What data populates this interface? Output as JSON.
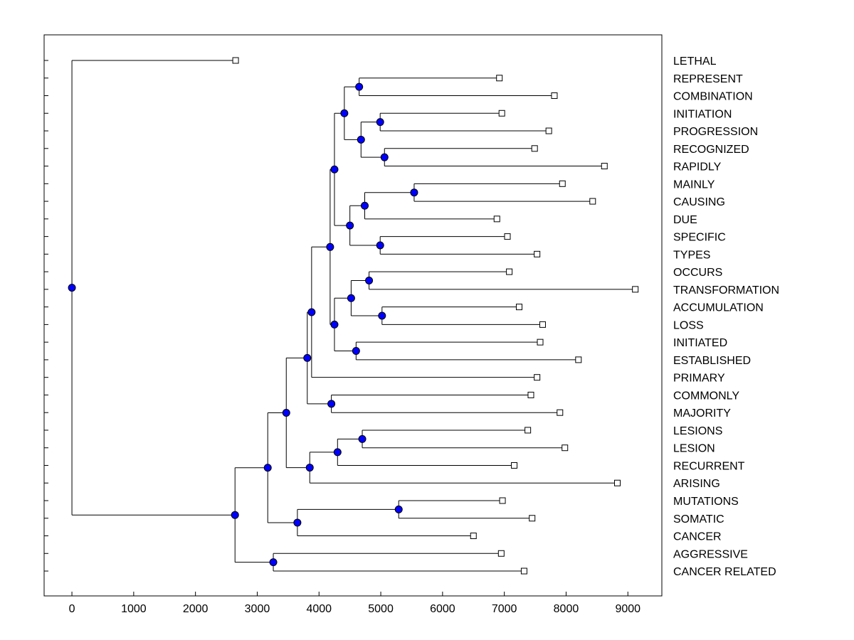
{
  "chart_data": {
    "type": "dendrogram",
    "orientation": "horizontal",
    "title": "",
    "xlabel": "",
    "ylabel": "",
    "xlim": [
      -450,
      9550
    ],
    "x_ticks": [
      0,
      1000,
      2000,
      3000,
      4000,
      5000,
      6000,
      7000,
      8000,
      9000
    ],
    "x_tick_labels": [
      "0",
      "1000",
      "2000",
      "3000",
      "4000",
      "5000",
      "6000",
      "7000",
      "8000",
      "9000"
    ],
    "grid": false,
    "leaf_marker_color": "#ffffff",
    "node_marker_color": "#0000ff",
    "leaves": [
      {
        "label": "LETHAL",
        "x": 2650
      },
      {
        "label": "REPRESENT",
        "x": 6920
      },
      {
        "label": "COMBINATION",
        "x": 7810
      },
      {
        "label": "INITIATION",
        "x": 6960
      },
      {
        "label": "PROGRESSION",
        "x": 7720
      },
      {
        "label": "RECOGNIZED",
        "x": 7490
      },
      {
        "label": "RAPIDLY",
        "x": 8620
      },
      {
        "label": "MAINLY",
        "x": 7940
      },
      {
        "label": "CAUSING",
        "x": 8430
      },
      {
        "label": "DUE",
        "x": 6880
      },
      {
        "label": "SPECIFIC",
        "x": 7050
      },
      {
        "label": "TYPES",
        "x": 7530
      },
      {
        "label": "OCCURS",
        "x": 7080
      },
      {
        "label": "TRANSFORMATION",
        "x": 9120
      },
      {
        "label": "ACCUMULATION",
        "x": 7240
      },
      {
        "label": "LOSS",
        "x": 7620
      },
      {
        "label": "INITIATED",
        "x": 7580
      },
      {
        "label": "ESTABLISHED",
        "x": 8200
      },
      {
        "label": "PRIMARY",
        "x": 7530
      },
      {
        "label": "COMMONLY",
        "x": 7430
      },
      {
        "label": "MAJORITY",
        "x": 7900
      },
      {
        "label": "LESIONS",
        "x": 7380
      },
      {
        "label": "LESION",
        "x": 7980
      },
      {
        "label": "RECURRENT",
        "x": 7160
      },
      {
        "label": "ARISING",
        "x": 8830
      },
      {
        "label": "MUTATIONS",
        "x": 6970
      },
      {
        "label": "SOMATIC",
        "x": 7450
      },
      {
        "label": "CANCER",
        "x": 6500
      },
      {
        "label": "AGGRESSIVE",
        "x": 6950
      },
      {
        "label": "CANCER RELATED",
        "x": 7320
      }
    ],
    "merges": [
      {
        "id": "m1",
        "x": 4650,
        "children": [
          "L1",
          "L2"
        ]
      },
      {
        "id": "m2",
        "x": 4990,
        "children": [
          "L3",
          "L4"
        ]
      },
      {
        "id": "m3",
        "x": 5060,
        "children": [
          "L5",
          "L6"
        ]
      },
      {
        "id": "m4",
        "x": 4680,
        "children": [
          "m2",
          "m3"
        ]
      },
      {
        "id": "m5",
        "x": 4410,
        "children": [
          "m1",
          "m4"
        ]
      },
      {
        "id": "m6",
        "x": 5540,
        "children": [
          "L7",
          "L8"
        ]
      },
      {
        "id": "m7",
        "x": 4740,
        "children": [
          "m6",
          "L9"
        ]
      },
      {
        "id": "m8",
        "x": 4990,
        "children": [
          "L10",
          "L11"
        ]
      },
      {
        "id": "m9",
        "x": 4500,
        "children": [
          "m7",
          "m8"
        ]
      },
      {
        "id": "m10",
        "x": 4250,
        "children": [
          "m5",
          "m9"
        ]
      },
      {
        "id": "m11",
        "x": 4810,
        "children": [
          "L12",
          "L13"
        ]
      },
      {
        "id": "m12",
        "x": 5020,
        "children": [
          "L14",
          "L15"
        ]
      },
      {
        "id": "m13",
        "x": 4520,
        "children": [
          "m11",
          "m12"
        ]
      },
      {
        "id": "m14",
        "x": 4600,
        "children": [
          "L16",
          "L17"
        ]
      },
      {
        "id": "m15",
        "x": 4250,
        "children": [
          "m13",
          "m14"
        ]
      },
      {
        "id": "m16",
        "x": 4180,
        "children": [
          "m10",
          "m15"
        ]
      },
      {
        "id": "m17",
        "x": 3880,
        "children": [
          "m16",
          "L18"
        ]
      },
      {
        "id": "m18",
        "x": 4200,
        "children": [
          "L19",
          "L20"
        ]
      },
      {
        "id": "m19",
        "x": 3810,
        "children": [
          "m17",
          "m18"
        ]
      },
      {
        "id": "m20",
        "x": 4700,
        "children": [
          "L21",
          "L22"
        ]
      },
      {
        "id": "m21",
        "x": 4300,
        "children": [
          "m20",
          "L23"
        ]
      },
      {
        "id": "m22",
        "x": 3850,
        "children": [
          "m21",
          "L24"
        ]
      },
      {
        "id": "m23",
        "x": 3470,
        "children": [
          "m19",
          "m22"
        ]
      },
      {
        "id": "m24",
        "x": 5290,
        "children": [
          "L25",
          "L26"
        ]
      },
      {
        "id": "m25",
        "x": 3650,
        "children": [
          "m24",
          "L27"
        ]
      },
      {
        "id": "m26",
        "x": 3170,
        "children": [
          "m23",
          "m25"
        ]
      },
      {
        "id": "m27",
        "x": 3260,
        "children": [
          "L28",
          "L29"
        ]
      },
      {
        "id": "m28",
        "x": 2640,
        "children": [
          "m26",
          "m27"
        ]
      },
      {
        "id": "m29",
        "x": 0,
        "children": [
          "L0",
          "m28"
        ]
      }
    ]
  }
}
